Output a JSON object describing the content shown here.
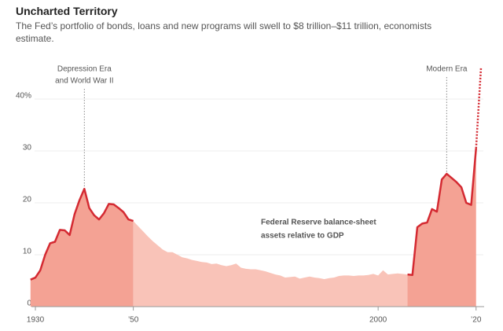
{
  "chart_data": {
    "type": "area",
    "title": "Uncharted Territory",
    "subtitle": "The Fed’s portfolio of bonds, loans and new programs will swell to $8 trillion–$11 trillion, economists estimate.",
    "label": [
      "Federal Reserve balance-sheet",
      "assets relative to GDP"
    ],
    "annotations": [
      {
        "x": 1940,
        "lines": [
          "Depression Era",
          "and World War II"
        ]
      },
      {
        "x": 2014,
        "lines": [
          "Modern Era"
        ]
      }
    ],
    "x": [
      1929,
      1930,
      1931,
      1932,
      1933,
      1934,
      1935,
      1936,
      1937,
      1938,
      1939,
      1940,
      1941,
      1942,
      1943,
      1944,
      1945,
      1946,
      1947,
      1948,
      1949,
      1950,
      1951,
      1952,
      1953,
      1954,
      1955,
      1956,
      1957,
      1958,
      1959,
      1960,
      1961,
      1962,
      1963,
      1964,
      1965,
      1966,
      1967,
      1968,
      1969,
      1970,
      1971,
      1972,
      1973,
      1974,
      1975,
      1976,
      1977,
      1978,
      1979,
      1980,
      1981,
      1982,
      1983,
      1984,
      1985,
      1986,
      1987,
      1988,
      1989,
      1990,
      1991,
      1992,
      1993,
      1994,
      1995,
      1996,
      1997,
      1998,
      1999,
      2000,
      2001,
      2002,
      2003,
      2004,
      2005,
      2006,
      2007,
      2008,
      2009,
      2010,
      2011,
      2012,
      2013,
      2014,
      2015,
      2016,
      2017,
      2018,
      2019,
      2020,
      2021
    ],
    "series": [
      {
        "color": "#d42a32",
        "fill": "#f4a294",
        "values": [
          5.2,
          5.6,
          7,
          10,
          12.2,
          12.5,
          14.8,
          14.7,
          13.8,
          17.8,
          20.5,
          22.7,
          19,
          17.6,
          16.8,
          18,
          19.8,
          19.7,
          19,
          18.2,
          16.8,
          16.5,
          null,
          null,
          null,
          null,
          null,
          null,
          null,
          null,
          null,
          null,
          null,
          null,
          null,
          null,
          null,
          null,
          null,
          null,
          null,
          null,
          null,
          null,
          null,
          null,
          null,
          null,
          null,
          null,
          null,
          null,
          null,
          null,
          null,
          null,
          null,
          null,
          null,
          null,
          null,
          null,
          null,
          null,
          null,
          null,
          null,
          null,
          null,
          null,
          null,
          null,
          null,
          null,
          null,
          null,
          null,
          6.2,
          6.1,
          15.3,
          16,
          16.2,
          18.8,
          18.3,
          24.5,
          25.6,
          24.8,
          24,
          23,
          20,
          19.6,
          30.5,
          null
        ]
      },
      {
        "fill": "#f9c3b8",
        "values": [
          null,
          null,
          null,
          null,
          null,
          null,
          null,
          null,
          null,
          null,
          null,
          null,
          null,
          null,
          null,
          null,
          null,
          null,
          null,
          null,
          null,
          16.5,
          15.5,
          14.5,
          13.5,
          12.6,
          11.8,
          11,
          10.5,
          10.5,
          10,
          9.5,
          9.3,
          9,
          8.8,
          8.6,
          8.5,
          8.2,
          8.3,
          8,
          7.8,
          8,
          8.3,
          7.5,
          7.3,
          7.2,
          7.2,
          7,
          6.8,
          6.5,
          6.2,
          6,
          5.6,
          5.7,
          5.8,
          5.4,
          5.6,
          5.8,
          5.6,
          5.5,
          5.3,
          5.5,
          5.6,
          5.9,
          6,
          6,
          5.9,
          6,
          6,
          6.1,
          6.3,
          6,
          7,
          6.2,
          6.3,
          6.4,
          6.3,
          6.2,
          null,
          null,
          null,
          null,
          null,
          null,
          null,
          null,
          null,
          null,
          null,
          null,
          null,
          null,
          null
        ]
      },
      {
        "color": "#d42a32",
        "dash": true,
        "values": [
          null,
          null,
          null,
          null,
          null,
          null,
          null,
          null,
          null,
          null,
          null,
          null,
          null,
          null,
          null,
          null,
          null,
          null,
          null,
          null,
          null,
          null,
          null,
          null,
          null,
          null,
          null,
          null,
          null,
          null,
          null,
          null,
          null,
          null,
          null,
          null,
          null,
          null,
          null,
          null,
          null,
          null,
          null,
          null,
          null,
          null,
          null,
          null,
          null,
          null,
          null,
          null,
          null,
          null,
          null,
          null,
          null,
          null,
          null,
          null,
          null,
          null,
          null,
          null,
          null,
          null,
          null,
          null,
          null,
          null,
          null,
          null,
          null,
          null,
          null,
          null,
          null,
          null,
          null,
          null,
          null,
          null,
          null,
          null,
          null,
          null,
          null,
          null,
          null,
          null,
          null,
          30.5,
          46
        ]
      }
    ],
    "xlim": [
      1929,
      2022
    ],
    "ylim": [
      0,
      47
    ],
    "xticks": [
      1930,
      {
        "value": 1950,
        "label": "’50"
      },
      2000,
      {
        "value": 2020,
        "label": "’20"
      }
    ],
    "yticks": [
      0,
      10,
      20,
      30,
      {
        "value": 40,
        "label": "40%"
      }
    ],
    "grid": true
  }
}
